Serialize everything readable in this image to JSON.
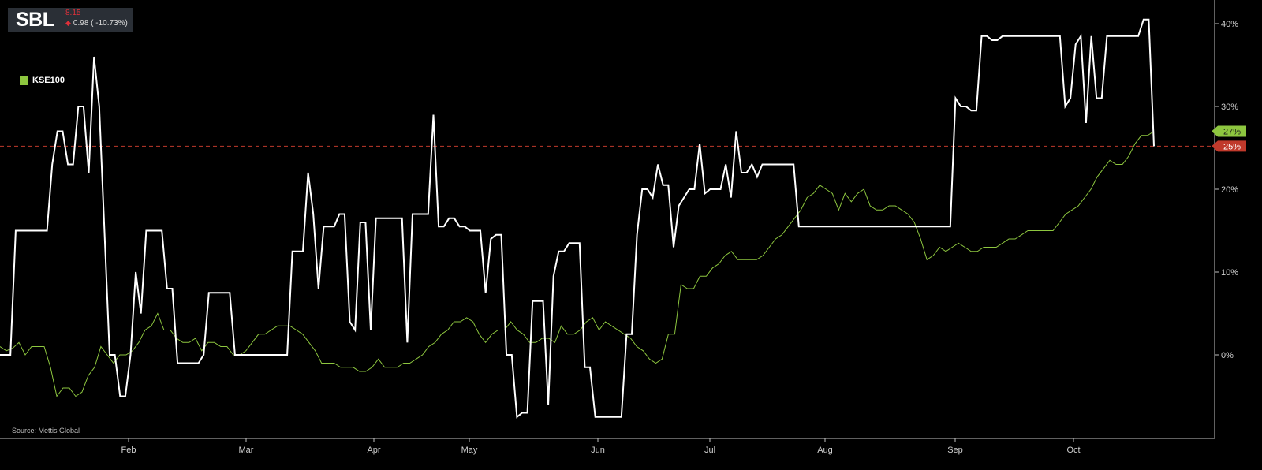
{
  "header": {
    "symbol": "SBL",
    "price": "8.15",
    "change": "0.98 ( -10.73%)"
  },
  "legend": {
    "label": "KSE100"
  },
  "source": "Source: Mettis Global",
  "colors": {
    "primary": "#ffffff",
    "secondary": "#8dc63f",
    "reference": "#c0392b",
    "down": "#e0303a"
  },
  "chart_data": {
    "type": "line",
    "x_ticks": [
      "Feb",
      "Mar",
      "Apr",
      "May",
      "Jun",
      "Jul",
      "Aug",
      "Sep",
      "Oct"
    ],
    "y_ticks": [
      "0%",
      "10%",
      "20%",
      "30%",
      "40%"
    ],
    "ylim": [
      -10,
      42
    ],
    "reference_line": {
      "value": 25.2,
      "label": "25%"
    },
    "end_labels": {
      "secondary": "27%",
      "primary": "25%"
    },
    "series": [
      {
        "role": "primary",
        "values": [
          0,
          0,
          0,
          15,
          15,
          15,
          15,
          15,
          15,
          15,
          23,
          27,
          27,
          23,
          23,
          30,
          30,
          22,
          36,
          30,
          15,
          0,
          0,
          -5,
          -5,
          0,
          10,
          5,
          15,
          15,
          15,
          15,
          8,
          8,
          -1,
          -1,
          -1,
          -1,
          -1,
          0,
          7.5,
          7.5,
          7.5,
          7.5,
          7.5,
          0,
          0,
          0,
          0,
          0,
          0,
          0,
          0,
          0,
          0,
          0,
          12.5,
          12.5,
          12.5,
          22,
          17,
          8,
          15.5,
          15.5,
          15.5,
          17,
          17,
          4,
          3,
          16,
          16,
          3,
          16.5,
          16.5,
          16.5,
          16.5,
          16.5,
          16.5,
          1.5,
          17,
          17,
          17,
          17,
          29,
          15.5,
          15.5,
          16.5,
          16.5,
          15.5,
          15.5,
          15,
          15,
          15,
          7.5,
          14,
          14.5,
          14.5,
          0,
          0,
          -7.5,
          -7,
          -7,
          6.5,
          6.5,
          6.5,
          -6,
          9.5,
          12.5,
          12.5,
          13.5,
          13.5,
          13.5,
          -1.5,
          -1.5,
          -7.5,
          -7.5,
          -7.5,
          -7.5,
          -7.5,
          -7.5,
          2.5,
          2.5,
          14.5,
          20,
          20,
          19,
          23,
          20.5,
          20.5,
          13,
          18,
          19,
          20,
          20,
          25.5,
          19.5,
          20,
          20,
          20,
          23,
          19,
          27,
          22,
          22,
          23,
          21.5,
          23,
          23,
          23,
          23,
          23,
          23,
          23,
          15.5,
          15.5,
          15.5,
          15.5,
          15.5,
          15.5,
          15.5,
          15.5,
          15.5,
          15.5,
          15.5,
          15.5,
          15.5,
          15.5,
          15.5,
          15.5,
          15.5,
          15.5,
          15.5,
          15.5,
          15.5,
          15.5,
          15.5,
          15.5,
          15.5,
          15.5,
          15.5,
          15.5,
          15.5,
          15.5,
          31,
          30,
          30,
          29.5,
          29.5,
          38.5,
          38.5,
          38,
          38,
          38.5,
          38.5,
          38.5,
          38.5,
          38.5,
          38.5,
          38.5,
          38.5,
          38.5,
          38.5,
          38.5,
          38.5,
          30,
          31,
          37.5,
          38.5,
          28,
          38.5,
          31,
          31,
          38.5,
          38.5,
          38.5,
          38.5,
          38.5,
          38.5,
          38.5,
          40.5,
          40.5,
          25.2
        ]
      },
      {
        "name": "KSE100",
        "role": "secondary",
        "values": [
          1,
          0.5,
          0.8,
          1.5,
          0,
          1,
          1,
          1,
          -1.5,
          -5,
          -4,
          -4,
          -5,
          -4.5,
          -2.5,
          -1.5,
          1,
          0,
          -1,
          0,
          0,
          0.5,
          1.5,
          3,
          3.5,
          5,
          3,
          3,
          2,
          1.5,
          1.5,
          2,
          0.5,
          1.5,
          1.5,
          1,
          1,
          0,
          0,
          0.5,
          1.5,
          2.5,
          2.5,
          3,
          3.5,
          3.5,
          3.5,
          3,
          2.5,
          1.5,
          0.5,
          -1,
          -1,
          -1,
          -1.5,
          -1.5,
          -1.5,
          -2,
          -2,
          -1.5,
          -0.5,
          -1.5,
          -1.5,
          -1.5,
          -1,
          -1,
          -0.5,
          0,
          1,
          1.5,
          2.5,
          3,
          4,
          4,
          4.5,
          4,
          2.5,
          1.5,
          2.5,
          3,
          3,
          4,
          3,
          2.5,
          1.5,
          1.5,
          2,
          2,
          1.5,
          3.5,
          2.5,
          2.5,
          3,
          4,
          4.5,
          3,
          4,
          3.5,
          3,
          2.5,
          2,
          1,
          0.5,
          -0.5,
          -1,
          -0.5,
          2.5,
          2.5,
          8.5,
          8,
          8,
          9.5,
          9.5,
          10.5,
          11,
          12,
          12.5,
          11.5,
          11.5,
          11.5,
          11.5,
          12,
          13,
          14,
          14.5,
          15.5,
          16.5,
          17.5,
          19,
          19.5,
          20.5,
          20,
          19.5,
          17.5,
          19.5,
          18.5,
          19.5,
          20,
          18,
          17.5,
          17.5,
          18,
          18,
          17.5,
          17,
          16,
          14,
          11.5,
          12,
          13,
          12.5,
          13,
          13.5,
          13,
          12.5,
          12.5,
          13,
          13,
          13,
          13.5,
          14,
          14,
          14.5,
          15,
          15,
          15,
          15,
          15,
          16,
          17,
          17.5,
          18,
          19,
          20,
          21.5,
          22.5,
          23.5,
          23,
          23,
          24,
          25.5,
          26.5,
          26.5,
          27
        ]
      }
    ]
  }
}
